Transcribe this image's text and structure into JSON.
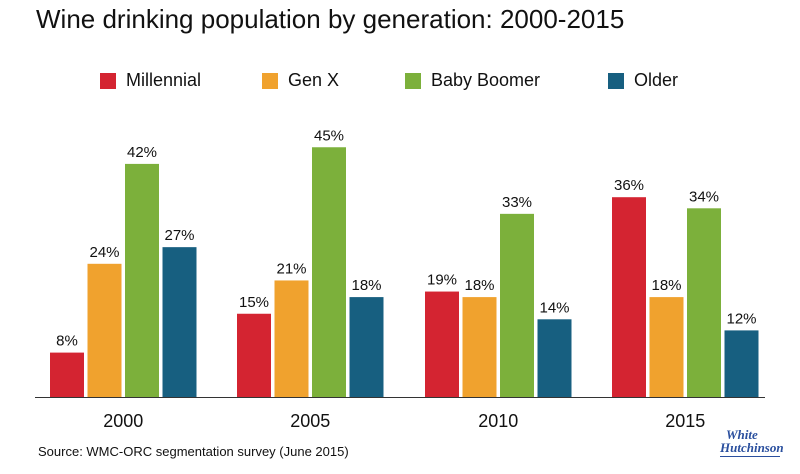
{
  "colors": {
    "millennial": "#d42431",
    "genx": "#f0a22e",
    "babyboomer": "#7cb03b",
    "older": "#175f80",
    "axis": "#333333"
  },
  "logo_text": "White Hutchinson",
  "source_text": "Source: WMC-ORC segmentation survey (June 2015)",
  "chart_data": {
    "type": "bar",
    "title": "Wine drinking population by generation: 2000-2015",
    "xlabel": "",
    "ylabel": "",
    "legend_position": "top",
    "grid": false,
    "ylim": [
      0,
      50
    ],
    "categories": [
      "2000",
      "2005",
      "2010",
      "2015"
    ],
    "series": [
      {
        "name": "Millennial",
        "values": [
          8,
          15,
          19,
          36
        ],
        "labels": [
          "8%",
          "15%",
          "19%",
          "36%"
        ]
      },
      {
        "name": "Gen X",
        "values": [
          24,
          21,
          18,
          18
        ],
        "labels": [
          "24%",
          "21%",
          "18%",
          "18%"
        ]
      },
      {
        "name": "Baby Boomer",
        "values": [
          42,
          45,
          33,
          34
        ],
        "labels": [
          "42%",
          "45%",
          "33%",
          "34%"
        ]
      },
      {
        "name": "Older",
        "values": [
          27,
          18,
          14,
          12
        ],
        "labels": [
          "27%",
          "18%",
          "14%",
          "12%"
        ]
      }
    ]
  }
}
